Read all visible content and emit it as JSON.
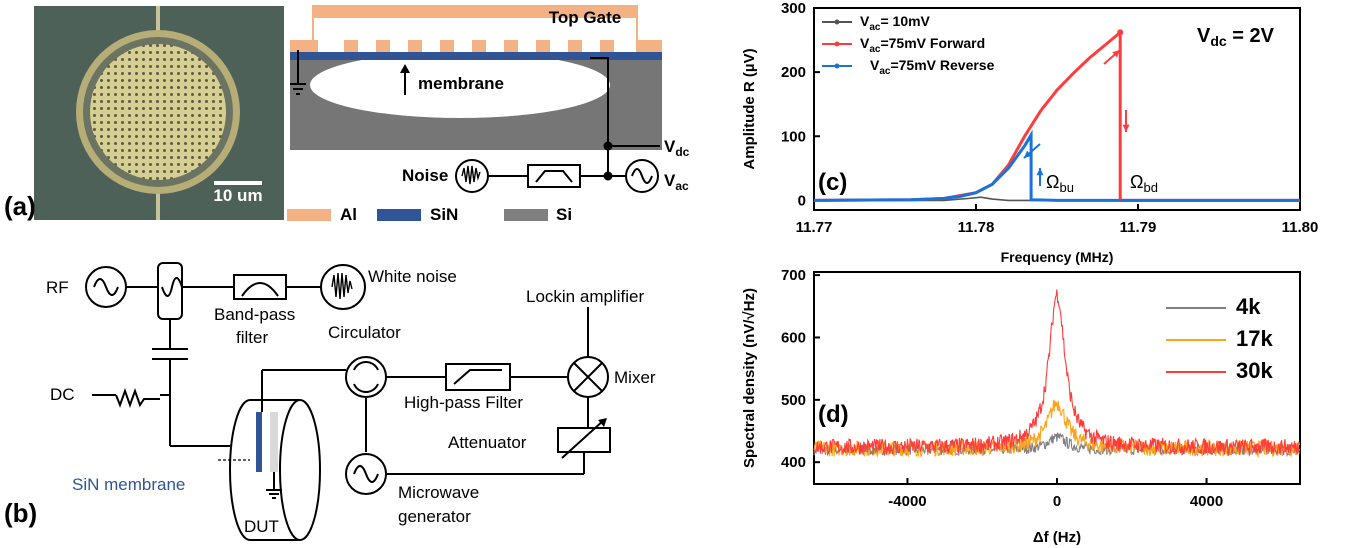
{
  "panel_a": {
    "label": "(a)",
    "scale_bar": "10 um",
    "top_gate": "Top Gate",
    "membrane": "membrane",
    "noise": "Noise",
    "vdc": "V",
    "vdc_sub": "dc",
    "vac": "V",
    "vac_sub": "ac",
    "legend": [
      {
        "name": "Al",
        "color": "#f4b183"
      },
      {
        "name": "SiN",
        "color": "#2f5597"
      },
      {
        "name": "Si",
        "color": "#7f7f7f"
      }
    ]
  },
  "panel_b": {
    "label": "(b)",
    "rf": "RF",
    "white_noise": "White noise",
    "band_pass_1": "Band-pass",
    "band_pass_2": "filter",
    "lockin": "Lockin amplifier",
    "circulator": "Circulator",
    "mixer": "Mixer",
    "dc": "DC",
    "high_pass": "High-pass Filter",
    "attenuator": "Attenuator",
    "sin_membrane": "SiN membrane",
    "microwave_1": "Microwave",
    "microwave_2": "generator",
    "dut": "DUT"
  },
  "chart_data": [
    {
      "type": "line",
      "panel_label": "(c)",
      "xlabel": "Frequency (MHz)",
      "ylabel": "Amplitude R (µV)",
      "xlim": [
        11.77,
        11.8
      ],
      "ylim": [
        -15,
        300
      ],
      "xticks": [
        "11.77",
        "11.78",
        "11.79",
        "11.80"
      ],
      "yticks": [
        "0",
        "100",
        "200",
        "300"
      ],
      "annotation": "V",
      "annotation_sub": "dc",
      "annotation_tail": " = 2V",
      "omega_bu": "Ω",
      "omega_bu_sub": "bu",
      "omega_bd": "Ω",
      "omega_bd_sub": "bd",
      "legend": [
        {
          "pre": "V",
          "sub": "ac",
          "post": "= 10mV",
          "color": "#555555"
        },
        {
          "pre": "V",
          "sub": "ac",
          "post": "=75mV Forward",
          "color": "#ff3b3b"
        },
        {
          "pre": "V",
          "sub": "ac",
          "post": "=75mV Reverse",
          "color": "#1a73d9"
        }
      ],
      "series": [
        {
          "color": "#555555",
          "x": [
            11.77,
            11.778,
            11.7795,
            11.7803,
            11.781,
            11.782,
            11.785,
            11.8
          ],
          "y": [
            0,
            0,
            3,
            5,
            2,
            0,
            0,
            0
          ]
        },
        {
          "color": "#ff3b3b",
          "x": [
            11.77,
            11.776,
            11.778,
            11.78,
            11.781,
            11.782,
            11.783,
            11.784,
            11.785,
            11.786,
            11.787,
            11.788,
            11.7889,
            11.7889,
            11.8
          ],
          "y": [
            0,
            1,
            3,
            12,
            25,
            55,
            100,
            140,
            172,
            198,
            222,
            243,
            262,
            0,
            0
          ]
        },
        {
          "color": "#1a73d9",
          "x": [
            11.8,
            11.785,
            11.7834,
            11.7834,
            11.783,
            11.782,
            11.781,
            11.78,
            11.779,
            11.778,
            11.776,
            11.77
          ],
          "y": [
            0,
            0,
            1,
            102,
            85,
            50,
            25,
            12,
            6,
            3,
            1,
            0
          ]
        }
      ]
    },
    {
      "type": "line",
      "panel_label": "(d)",
      "xlabel": "Δf (Hz)",
      "ylabel": "Spectral density  (nV/√Hz)",
      "xlim": [
        -6500,
        6500
      ],
      "ylim": [
        365,
        705
      ],
      "xticks": [
        "-4000",
        "0",
        "4000"
      ],
      "yticks": [
        "400",
        "500",
        "600",
        "700"
      ],
      "series": [
        {
          "name": "4k",
          "color": "#808080",
          "peak": 440,
          "base": 420
        },
        {
          "name": "17k",
          "color": "#ffa31a",
          "peak": 495,
          "base": 422
        },
        {
          "name": "30k",
          "color": "#ff3b3b",
          "peak": 670,
          "base": 424
        }
      ]
    }
  ]
}
